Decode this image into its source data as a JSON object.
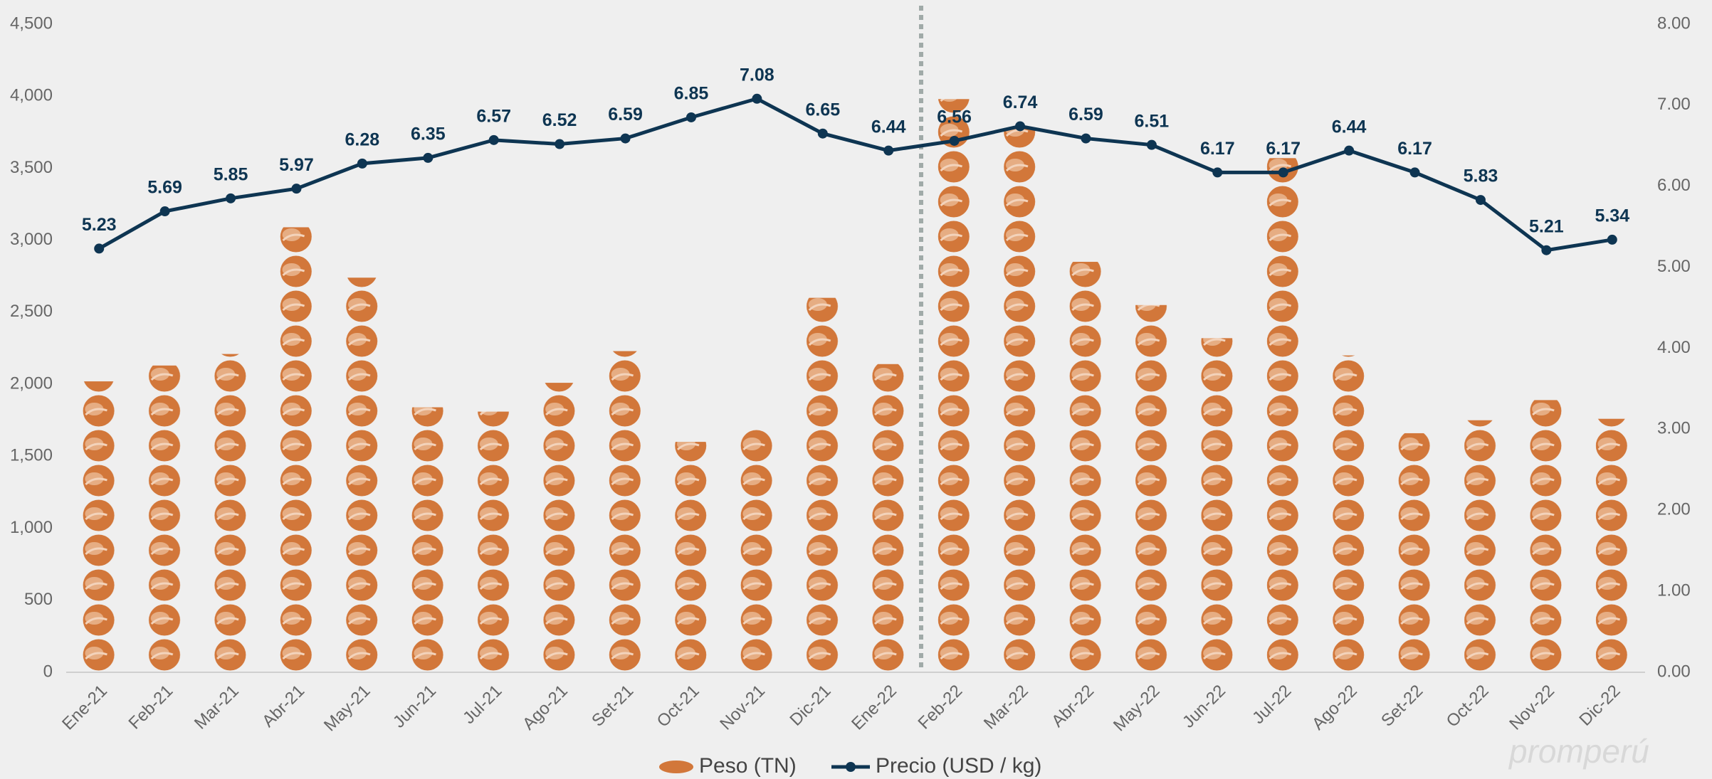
{
  "chart_data": {
    "type": "pictogram-bar-line",
    "categories": [
      "Ene-21",
      "Feb-21",
      "Mar-21",
      "Abr-21",
      "May-21",
      "Jun-21",
      "Jul-21",
      "Ago-21",
      "Set-21",
      "Oct-21",
      "Nov-21",
      "Dic-21",
      "Ene-22",
      "Feb-22",
      "Mar-22",
      "Abr-22",
      "May-22",
      "Jun-22",
      "Jul-22",
      "Ago-22",
      "Set-22",
      "Oct-22",
      "Nov-22",
      "Dic-22"
    ],
    "series": [
      {
        "name": "Peso (TN)",
        "type": "bar",
        "color": "#d2773a",
        "values": [
          2020,
          2130,
          2210,
          3090,
          2740,
          1840,
          1810,
          2010,
          2230,
          1600,
          1690,
          2600,
          2140,
          3980,
          3780,
          2850,
          2550,
          2320,
          3570,
          2200,
          1660,
          1750,
          1890,
          1760
        ]
      },
      {
        "name": "Precio (USD / kg)",
        "type": "line",
        "axis": "y2",
        "color": "#0e3552",
        "values": [
          5.23,
          5.69,
          5.85,
          5.97,
          6.28,
          6.35,
          6.57,
          6.52,
          6.59,
          6.85,
          7.08,
          6.65,
          6.44,
          6.56,
          6.74,
          6.59,
          6.51,
          6.17,
          6.17,
          6.44,
          6.17,
          5.83,
          5.21,
          5.34
        ]
      }
    ],
    "ylim": [
      0,
      4500
    ],
    "yticks": [
      0,
      500,
      {
        "value": 1000,
        "label": "1,000"
      },
      {
        "value": 1500,
        "label": "1,500"
      },
      {
        "value": 2000,
        "label": "2,000"
      },
      {
        "value": 2500,
        "label": "2,500"
      },
      {
        "value": 3000,
        "label": "3,000"
      },
      {
        "value": 3500,
        "label": "3,500"
      },
      {
        "value": 4000,
        "label": "4,000"
      },
      {
        "value": 4500,
        "label": "4,500"
      }
    ],
    "y2lim": [
      0,
      8
    ],
    "y2ticks": [
      {
        "value": 0,
        "label": "0.00"
      },
      {
        "value": 1,
        "label": "1.00"
      },
      {
        "value": 2,
        "label": "2.00"
      },
      {
        "value": 3,
        "label": "3.00"
      },
      {
        "value": 4,
        "label": "4.00"
      },
      {
        "value": 5,
        "label": "5.00"
      },
      {
        "value": 6,
        "label": "6.00"
      },
      {
        "value": 7,
        "label": "7.00"
      },
      {
        "value": 8,
        "label": "8.00"
      }
    ],
    "watermark": "promperú"
  }
}
